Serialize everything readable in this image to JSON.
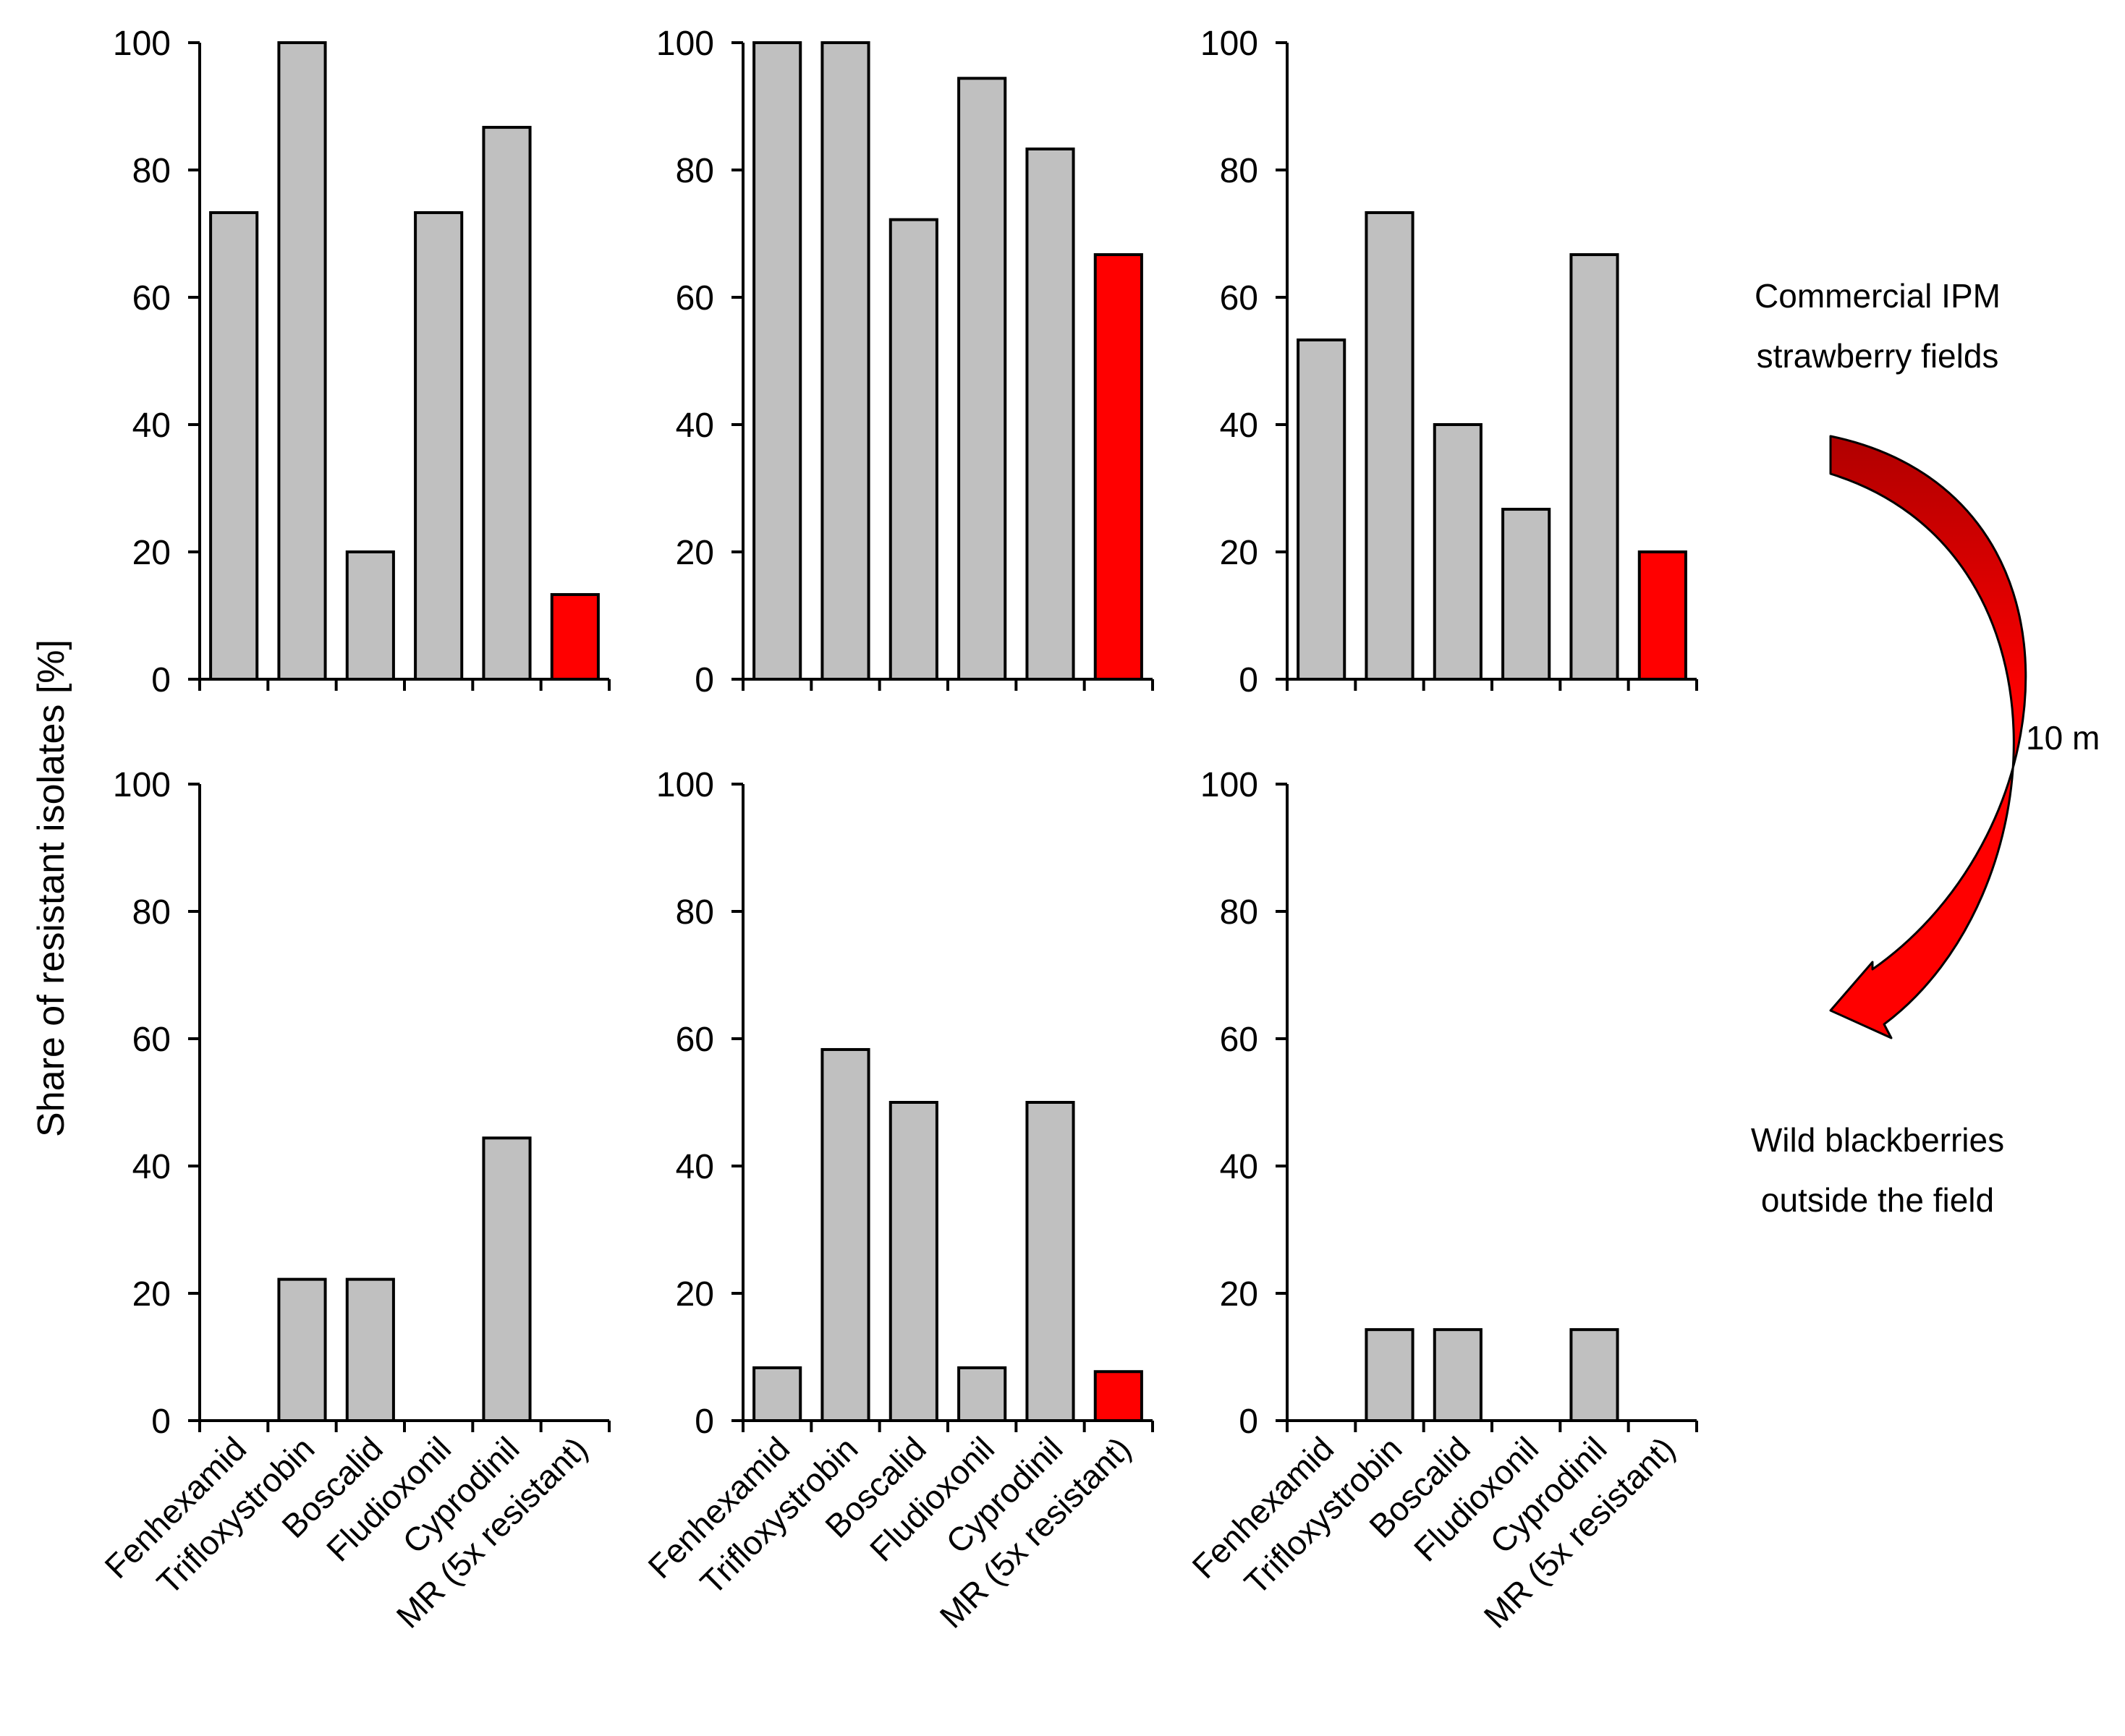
{
  "figure": {
    "ylabel": "Share of resistant isolates [%]",
    "annotations": {
      "top_label_line1": "Commercial IPM",
      "top_label_line2": "strawberry fields",
      "bottom_label_line1": "Wild blackberries",
      "bottom_label_line2": "outside the field",
      "distance_label": "10 m"
    },
    "colors": {
      "bar_default": "#c0c0c0",
      "bar_highlight": "#ff0000",
      "arrow_fill": "#ff0000",
      "arrow_fill_dark": "#b00000",
      "outline": "#000000"
    }
  },
  "chart_data": [
    {
      "type": "bar",
      "row": "top",
      "col": 1,
      "categories": [
        "Fenhexamid",
        "Trifloxystrobin",
        "Boscalid",
        "Fludioxonil",
        "Cyprodinil",
        "MR (5x resistant)"
      ],
      "values": [
        73.3,
        100,
        20,
        73.3,
        86.7,
        13.3
      ],
      "highlight": [
        false,
        false,
        false,
        false,
        false,
        true
      ],
      "ylim": [
        0,
        100
      ],
      "yticks": [
        "0",
        "20",
        "40",
        "60",
        "80",
        "100"
      ],
      "show_xlabels": false,
      "show_ylabel": true
    },
    {
      "type": "bar",
      "row": "top",
      "col": 2,
      "categories": [
        "Fenhexamid",
        "Trifloxystrobin",
        "Boscalid",
        "Fludioxonil",
        "Cyprodinil",
        "MR (5x resistant)"
      ],
      "values": [
        100,
        100,
        72.2,
        94.4,
        83.3,
        66.7
      ],
      "highlight": [
        false,
        false,
        false,
        false,
        false,
        true
      ],
      "ylim": [
        0,
        100
      ],
      "yticks": [
        "0",
        "20",
        "40",
        "60",
        "80",
        "100"
      ],
      "show_xlabels": false,
      "show_ylabel": false
    },
    {
      "type": "bar",
      "row": "top",
      "col": 3,
      "categories": [
        "Fenhexamid",
        "Trifloxystrobin",
        "Boscalid",
        "Fludioxonil",
        "Cyprodinil",
        "MR (5x resistant)"
      ],
      "values": [
        53.3,
        73.3,
        40,
        26.7,
        66.7,
        20
      ],
      "highlight": [
        false,
        false,
        false,
        false,
        false,
        true
      ],
      "ylim": [
        0,
        100
      ],
      "yticks": [
        "0",
        "20",
        "40",
        "60",
        "80",
        "100"
      ],
      "show_xlabels": false,
      "show_ylabel": false
    },
    {
      "type": "bar",
      "row": "bottom",
      "col": 1,
      "categories": [
        "Fenhexamid",
        "Trifloxystrobin",
        "Boscalid",
        "Fludioxonil",
        "Cyprodinil",
        "MR (5x resistant)"
      ],
      "values": [
        0,
        22.2,
        22.2,
        0,
        44.4,
        0
      ],
      "highlight": [
        false,
        false,
        false,
        false,
        false,
        true
      ],
      "ylim": [
        0,
        100
      ],
      "yticks": [
        "0",
        "20",
        "40",
        "60",
        "80",
        "100"
      ],
      "show_xlabels": true,
      "show_ylabel": false
    },
    {
      "type": "bar",
      "row": "bottom",
      "col": 2,
      "categories": [
        "Fenhexamid",
        "Trifloxystrobin",
        "Boscalid",
        "Fludioxonil",
        "Cyprodinil",
        "MR (5x resistant)"
      ],
      "values": [
        8.3,
        58.3,
        50,
        8.3,
        50,
        7.7
      ],
      "highlight": [
        false,
        false,
        false,
        false,
        false,
        true
      ],
      "ylim": [
        0,
        100
      ],
      "yticks": [
        "0",
        "20",
        "40",
        "60",
        "80",
        "100"
      ],
      "show_xlabels": true,
      "show_ylabel": false
    },
    {
      "type": "bar",
      "row": "bottom",
      "col": 3,
      "categories": [
        "Fenhexamid",
        "Trifloxystrobin",
        "Boscalid",
        "Fludioxonil",
        "Cyprodinil",
        "MR (5x resistant)"
      ],
      "values": [
        0,
        14.3,
        14.3,
        0,
        14.3,
        0
      ],
      "highlight": [
        false,
        false,
        false,
        false,
        false,
        true
      ],
      "ylim": [
        0,
        100
      ],
      "yticks": [
        "0",
        "20",
        "40",
        "60",
        "80",
        "100"
      ],
      "show_xlabels": true,
      "show_ylabel": false
    }
  ]
}
